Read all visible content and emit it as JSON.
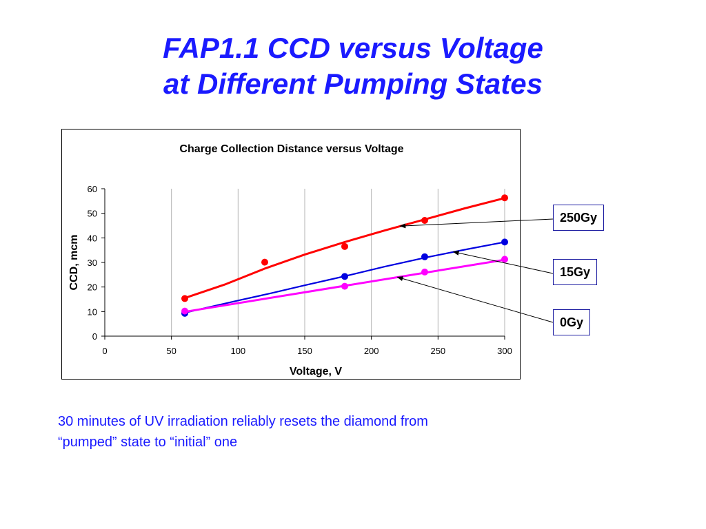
{
  "slide": {
    "title_line1": "FAP1.1 CCD versus Voltage",
    "title_line2": "at Different Pumping States",
    "caption_line1": "30 minutes of UV irradiation reliably resets the diamond from",
    "caption_line2": "“pumped” state to “initial” one"
  },
  "callouts": [
    {
      "label": "250Gy",
      "series": "250Gy"
    },
    {
      "label": "15Gy",
      "series": "15Gy"
    },
    {
      "label": "0Gy",
      "series": "0Gy"
    }
  ],
  "chart_data": {
    "type": "scatter",
    "title": "Charge Collection Distance versus Voltage",
    "xlabel": "Voltage, V",
    "ylabel": "CCD, mcm",
    "xlim": [
      0,
      300
    ],
    "ylim": [
      0,
      60
    ],
    "x_ticks": [
      0,
      50,
      100,
      150,
      200,
      250,
      300
    ],
    "y_ticks": [
      0,
      10,
      20,
      30,
      40,
      50,
      60
    ],
    "grid": "vertical",
    "legend": "none",
    "series": [
      {
        "name": "250Gy",
        "color": "#ff0000",
        "points": [
          [
            60,
            15.3
          ],
          [
            120,
            30.1
          ],
          [
            180,
            36.5
          ],
          [
            240,
            47.1
          ],
          [
            300,
            56.3
          ]
        ],
        "fit": [
          [
            60,
            15.5
          ],
          [
            90,
            21.0
          ],
          [
            120,
            27.5
          ],
          [
            150,
            33.2
          ],
          [
            180,
            38.3
          ],
          [
            210,
            43.0
          ],
          [
            240,
            47.5
          ],
          [
            270,
            52.0
          ],
          [
            300,
            56.2
          ]
        ]
      },
      {
        "name": "15Gy",
        "color": "#0000e0",
        "points": [
          [
            60,
            9.3
          ],
          [
            180,
            24.3
          ],
          [
            240,
            32.3
          ],
          [
            300,
            38.3
          ]
        ],
        "fit": [
          [
            60,
            9.5
          ],
          [
            75,
            11.4
          ],
          [
            100,
            14.5
          ],
          [
            125,
            17.5
          ],
          [
            150,
            20.7
          ],
          [
            180,
            24.4
          ],
          [
            210,
            28.3
          ],
          [
            240,
            31.9
          ],
          [
            270,
            35.2
          ],
          [
            300,
            38.3
          ]
        ]
      },
      {
        "name": "0Gy",
        "color": "#ff00ff",
        "points": [
          [
            60,
            10.2
          ],
          [
            180,
            20.3
          ],
          [
            240,
            26.1
          ],
          [
            300,
            31.3
          ]
        ],
        "fit": [
          [
            60,
            9.9
          ],
          [
            300,
            31.1
          ]
        ]
      }
    ]
  }
}
